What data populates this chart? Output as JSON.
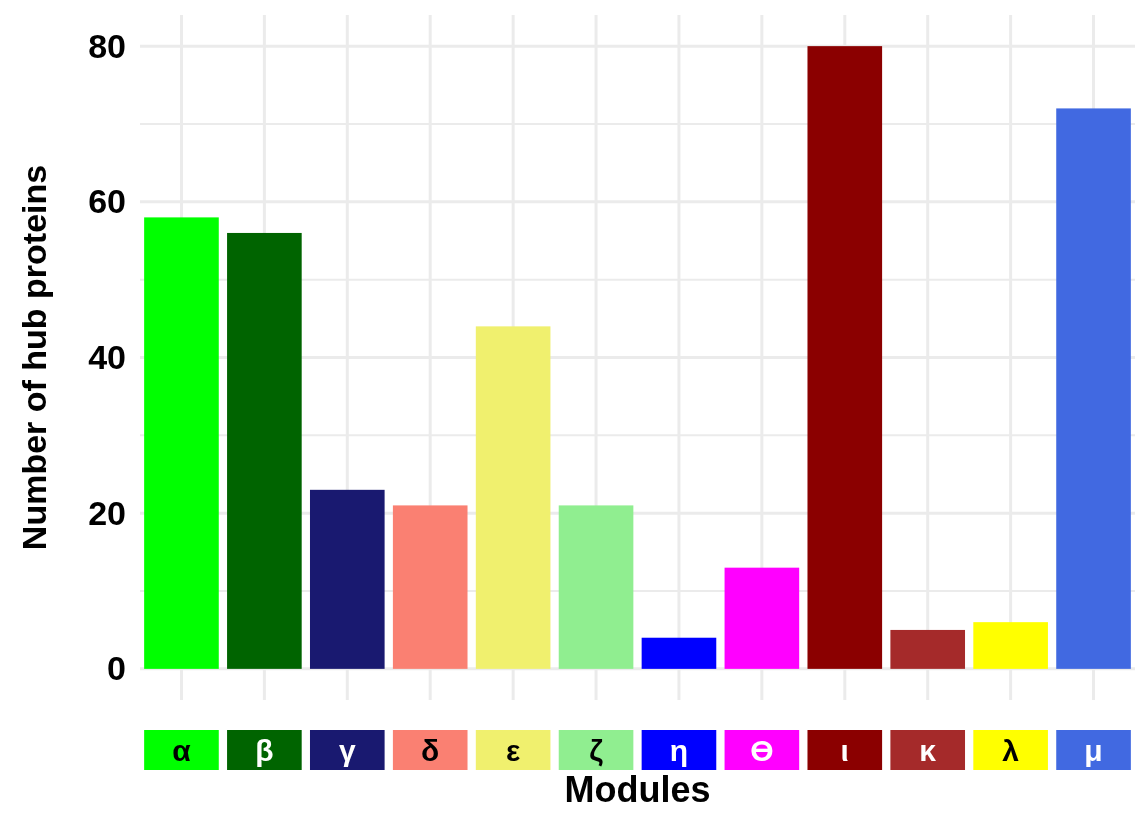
{
  "chart_data": {
    "type": "bar",
    "xlabel": "Modules",
    "ylabel": "Number of hub proteins",
    "categories": [
      "α",
      "β",
      "γ",
      "δ",
      "ε",
      "ζ",
      "η",
      "ϴ",
      "ι",
      "κ",
      "λ",
      "μ"
    ],
    "values": [
      58,
      56,
      23,
      21,
      44,
      21,
      4,
      13,
      80,
      5,
      6,
      72
    ],
    "colors": [
      "#00ff00",
      "#006400",
      "#191970",
      "#fa8072",
      "#f0f06e",
      "#90ee90",
      "#0000ff",
      "#ff00ff",
      "#8b0000",
      "#a52a2a",
      "#ffff00",
      "#4169e1"
    ],
    "ylim": [
      -4,
      84
    ],
    "yticks": [
      0,
      {
        "value": 10,
        "label": null
      },
      20,
      {
        "value": 30,
        "label": null
      },
      40,
      {
        "value": 50,
        "label": null
      },
      60,
      {
        "value": 70,
        "label": null
      },
      80
    ],
    "grid": true
  }
}
